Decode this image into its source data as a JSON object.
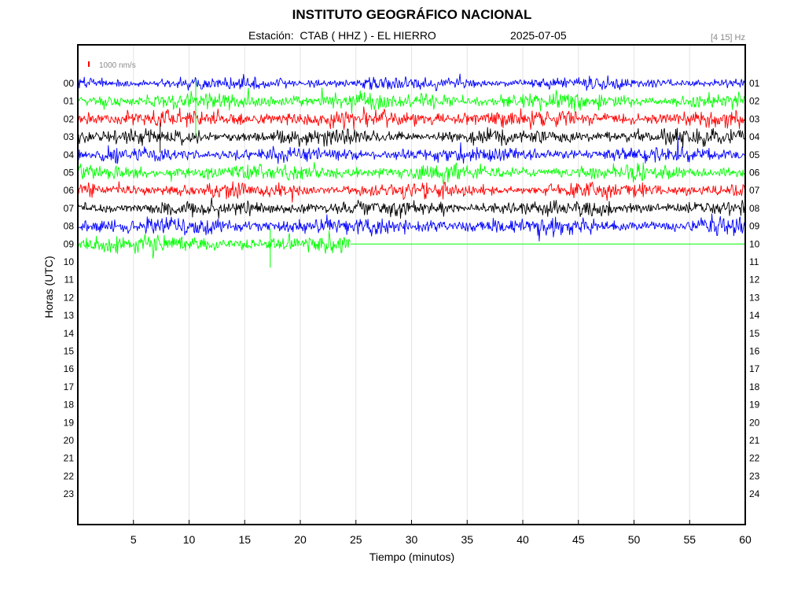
{
  "header": {
    "title": "INSTITUTO GEOGRÁFICO NACIONAL",
    "station": "Estación:  CTAB ( HHZ ) - EL HIERRO",
    "date": "2025-07-05",
    "filter": "[4 15] Hz"
  },
  "chart_data": {
    "type": "line",
    "title": "INSTITUTO GEOGRÁFICO NACIONAL",
    "xlabel": "Tiempo (minutos)",
    "ylabel": "Horas (UTC)",
    "xlim": [
      0,
      60
    ],
    "x_ticks": [
      5,
      10,
      15,
      20,
      25,
      30,
      35,
      40,
      45,
      50,
      55,
      60
    ],
    "left_hour_labels": [
      "00",
      "01",
      "02",
      "03",
      "04",
      "05",
      "06",
      "07",
      "08",
      "09",
      "10",
      "11",
      "12",
      "13",
      "14",
      "15",
      "16",
      "17",
      "18",
      "19",
      "20",
      "21",
      "22",
      "23"
    ],
    "right_hour_labels": [
      "01",
      "02",
      "03",
      "04",
      "05",
      "06",
      "07",
      "08",
      "09",
      "10",
      "11",
      "12",
      "13",
      "14",
      "15",
      "16",
      "17",
      "18",
      "19",
      "20",
      "21",
      "22",
      "23",
      "24"
    ],
    "grid": true,
    "scale_bar": {
      "label": "1000 nm/s",
      "color": "#ff0000"
    },
    "trace_color_cycle": [
      "#0000ff",
      "#00ff00",
      "#ff0000",
      "#000000"
    ],
    "traces": [
      {
        "hour": "00",
        "minutes_recorded": 60,
        "relative_amplitude": 0.55
      },
      {
        "hour": "01",
        "minutes_recorded": 60,
        "relative_amplitude": 0.75
      },
      {
        "hour": "02",
        "minutes_recorded": 60,
        "relative_amplitude": 0.75
      },
      {
        "hour": "03",
        "minutes_recorded": 60,
        "relative_amplitude": 0.7
      },
      {
        "hour": "04",
        "minutes_recorded": 60,
        "relative_amplitude": 0.65
      },
      {
        "hour": "05",
        "minutes_recorded": 60,
        "relative_amplitude": 0.7
      },
      {
        "hour": "06",
        "minutes_recorded": 60,
        "relative_amplitude": 0.7
      },
      {
        "hour": "07",
        "minutes_recorded": 60,
        "relative_amplitude": 0.7
      },
      {
        "hour": "08",
        "minutes_recorded": 60,
        "relative_amplitude": 0.8
      },
      {
        "hour": "09",
        "minutes_recorded": 24.5,
        "relative_amplitude": 0.85
      }
    ]
  }
}
